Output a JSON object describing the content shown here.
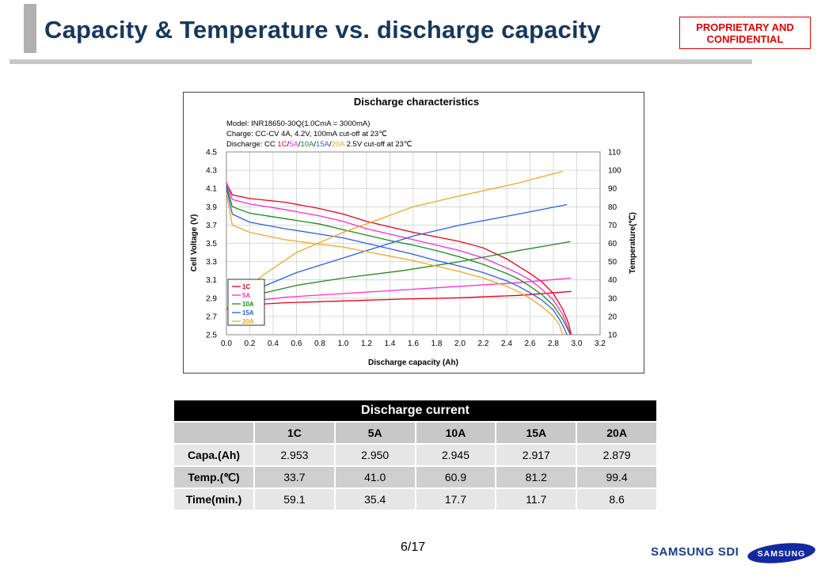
{
  "header": {
    "title": "Capacity & Temperature vs. discharge capacity",
    "confidential_line1": "PROPRIETARY AND",
    "confidential_line2": "CONFIDENTIAL"
  },
  "chart_data": {
    "type": "line",
    "title": "Discharge characteristics",
    "annotations": [
      "Model: INR18650-30Q(1.0CmA = 3000mA)",
      "Charge: CC-CV 4A, 4.2V, 100mA cut-off at 23℃",
      "Discharge: CC 1C/5A/10A/15A/20A 2.5V cut-off at 23℃"
    ],
    "annotation_discharge_prefix": "Discharge: CC ",
    "annotation_discharge_suffix": " 2.5V cut-off at 23℃",
    "xlabel": "Discharge capacity (Ah)",
    "ylabel": "Cell Voltage (V)",
    "y2label": "Temperature(℃)",
    "xlim": [
      0.0,
      3.2
    ],
    "ylim": [
      2.5,
      4.5
    ],
    "y2lim": [
      10,
      110
    ],
    "x_ticks": [
      "0.0",
      "0.2",
      "0.4",
      "0.6",
      "0.8",
      "1.0",
      "1.2",
      "1.4",
      "1.6",
      "1.8",
      "2.0",
      "2.2",
      "2.4",
      "2.6",
      "2.8",
      "3.0",
      "3.2"
    ],
    "y_ticks": [
      "2.5",
      "2.7",
      "2.9",
      "3.1",
      "3.3",
      "3.5",
      "3.7",
      "3.9",
      "4.1",
      "4.3",
      "4.5"
    ],
    "y2_ticks": [
      "10",
      "20",
      "30",
      "40",
      "50",
      "60",
      "70",
      "80",
      "90",
      "100",
      "110"
    ],
    "grid": true,
    "legend_position": "bottom-left",
    "series": [
      {
        "name": "1C",
        "color": "#e8001c",
        "voltage": [
          [
            0,
            4.16
          ],
          [
            0.05,
            4.03
          ],
          [
            0.2,
            3.99
          ],
          [
            0.5,
            3.95
          ],
          [
            0.8,
            3.88
          ],
          [
            1.0,
            3.82
          ],
          [
            1.2,
            3.74
          ],
          [
            1.4,
            3.68
          ],
          [
            1.6,
            3.62
          ],
          [
            1.8,
            3.57
          ],
          [
            2.0,
            3.52
          ],
          [
            2.2,
            3.45
          ],
          [
            2.4,
            3.33
          ],
          [
            2.5,
            3.25
          ],
          [
            2.6,
            3.17
          ],
          [
            2.7,
            3.08
          ],
          [
            2.8,
            2.95
          ],
          [
            2.88,
            2.78
          ],
          [
            2.93,
            2.62
          ],
          [
            2.953,
            2.5
          ]
        ],
        "temperature": [
          [
            0,
            24
          ],
          [
            0.1,
            26
          ],
          [
            0.5,
            27.5
          ],
          [
            1.0,
            28.5
          ],
          [
            1.5,
            29.5
          ],
          [
            2.0,
            30.2
          ],
          [
            2.5,
            31.5
          ],
          [
            2.953,
            33.7
          ]
        ]
      },
      {
        "name": "5A",
        "color": "#ff2bd0",
        "voltage": [
          [
            0,
            4.17
          ],
          [
            0.05,
            3.98
          ],
          [
            0.2,
            3.93
          ],
          [
            0.5,
            3.87
          ],
          [
            0.8,
            3.8
          ],
          [
            1.0,
            3.74
          ],
          [
            1.2,
            3.66
          ],
          [
            1.4,
            3.6
          ],
          [
            1.6,
            3.54
          ],
          [
            1.8,
            3.48
          ],
          [
            2.0,
            3.42
          ],
          [
            2.2,
            3.34
          ],
          [
            2.4,
            3.23
          ],
          [
            2.5,
            3.17
          ],
          [
            2.6,
            3.1
          ],
          [
            2.7,
            3.0
          ],
          [
            2.8,
            2.88
          ],
          [
            2.88,
            2.72
          ],
          [
            2.95,
            2.5
          ]
        ],
        "temperature": [
          [
            0,
            24
          ],
          [
            0.1,
            27.5
          ],
          [
            0.5,
            30.5
          ],
          [
            1.0,
            32.5
          ],
          [
            1.5,
            34.5
          ],
          [
            2.0,
            36.5
          ],
          [
            2.5,
            38.5
          ],
          [
            2.95,
            41.0
          ]
        ]
      },
      {
        "name": "10A",
        "color": "#1e8a1e",
        "voltage": [
          [
            0,
            4.14
          ],
          [
            0.05,
            3.9
          ],
          [
            0.2,
            3.83
          ],
          [
            0.5,
            3.77
          ],
          [
            0.8,
            3.71
          ],
          [
            1.0,
            3.65
          ],
          [
            1.2,
            3.59
          ],
          [
            1.4,
            3.53
          ],
          [
            1.6,
            3.48
          ],
          [
            1.8,
            3.42
          ],
          [
            2.0,
            3.35
          ],
          [
            2.2,
            3.27
          ],
          [
            2.4,
            3.17
          ],
          [
            2.5,
            3.11
          ],
          [
            2.6,
            3.03
          ],
          [
            2.7,
            2.94
          ],
          [
            2.8,
            2.82
          ],
          [
            2.88,
            2.67
          ],
          [
            2.945,
            2.5
          ]
        ],
        "temperature": [
          [
            0,
            24
          ],
          [
            0.1,
            29
          ],
          [
            0.3,
            32.5
          ],
          [
            0.6,
            37
          ],
          [
            1.0,
            41
          ],
          [
            1.5,
            45
          ],
          [
            2.0,
            50
          ],
          [
            2.5,
            56
          ],
          [
            2.945,
            60.9
          ]
        ]
      },
      {
        "name": "15A",
        "color": "#2a5fe8",
        "voltage": [
          [
            0,
            4.11
          ],
          [
            0.05,
            3.82
          ],
          [
            0.2,
            3.73
          ],
          [
            0.5,
            3.66
          ],
          [
            0.8,
            3.6
          ],
          [
            1.0,
            3.56
          ],
          [
            1.2,
            3.5
          ],
          [
            1.4,
            3.44
          ],
          [
            1.6,
            3.38
          ],
          [
            1.8,
            3.31
          ],
          [
            2.0,
            3.25
          ],
          [
            2.2,
            3.18
          ],
          [
            2.4,
            3.09
          ],
          [
            2.5,
            3.03
          ],
          [
            2.6,
            2.96
          ],
          [
            2.7,
            2.88
          ],
          [
            2.8,
            2.77
          ],
          [
            2.87,
            2.63
          ],
          [
            2.917,
            2.5
          ]
        ],
        "temperature": [
          [
            0,
            24
          ],
          [
            0.1,
            30
          ],
          [
            0.3,
            36
          ],
          [
            0.6,
            44
          ],
          [
            1.0,
            52
          ],
          [
            1.3,
            58
          ],
          [
            1.6,
            64
          ],
          [
            2.0,
            70
          ],
          [
            2.5,
            76
          ],
          [
            2.917,
            81.2
          ]
        ]
      },
      {
        "name": "20A",
        "color": "#f5a623",
        "voltage": [
          [
            0,
            4.05
          ],
          [
            0.05,
            3.7
          ],
          [
            0.2,
            3.62
          ],
          [
            0.5,
            3.54
          ],
          [
            0.8,
            3.49
          ],
          [
            1.0,
            3.46
          ],
          [
            1.2,
            3.41
          ],
          [
            1.4,
            3.36
          ],
          [
            1.6,
            3.31
          ],
          [
            1.8,
            3.25
          ],
          [
            2.0,
            3.19
          ],
          [
            2.2,
            3.12
          ],
          [
            2.4,
            3.03
          ],
          [
            2.5,
            2.97
          ],
          [
            2.6,
            2.9
          ],
          [
            2.7,
            2.81
          ],
          [
            2.8,
            2.7
          ],
          [
            2.85,
            2.61
          ],
          [
            2.879,
            2.5
          ]
        ],
        "temperature": [
          [
            0,
            24
          ],
          [
            0.1,
            31
          ],
          [
            0.3,
            42
          ],
          [
            0.6,
            55
          ],
          [
            1.0,
            66
          ],
          [
            1.3,
            73
          ],
          [
            1.6,
            80
          ],
          [
            2.0,
            86
          ],
          [
            2.5,
            93
          ],
          [
            2.879,
            99.4
          ]
        ]
      }
    ]
  },
  "table": {
    "title": "Discharge current",
    "columns": [
      "1C",
      "5A",
      "10A",
      "15A",
      "20A"
    ],
    "rows": [
      {
        "label": "Capa.(Ah)",
        "values": [
          "2.953",
          "2.950",
          "2.945",
          "2.917",
          "2.879"
        ]
      },
      {
        "label": "Temp.(℃)",
        "values": [
          "33.7",
          "41.0",
          "60.9",
          "81.2",
          "99.4"
        ]
      },
      {
        "label": "Time(min.)",
        "values": [
          "59.1",
          "35.4",
          "17.7",
          "11.7",
          "8.6"
        ]
      }
    ]
  },
  "footer": {
    "page": "6/17",
    "brand": "SAMSUNG SDI",
    "logo_text": "SAMSUNG"
  }
}
